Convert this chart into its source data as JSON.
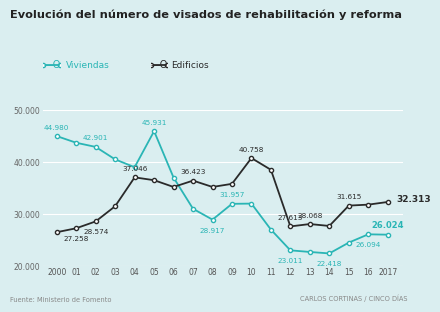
{
  "title": "Evolución del número de visados de rehabilitación y reforma",
  "color_viviendas": "#2ab5b5",
  "color_edificios": "#2a2a2a",
  "bg_color": "#daeef0",
  "ylim": [
    20000,
    50000
  ],
  "yticks": [
    20000,
    30000,
    40000,
    50000
  ],
  "source_text": "Fuente: Ministerio de Fomento",
  "credit_text": "CARLOS CORTINAS / CINCO DÍAS",
  "viv_x": [
    2000,
    2001,
    2002,
    2003,
    2004,
    2005,
    2006,
    2007,
    2008,
    2009,
    2010,
    2011,
    2012,
    2013,
    2014,
    2015,
    2016,
    2017
  ],
  "viv_y": [
    44980,
    43700,
    42901,
    40500,
    39000,
    45931,
    37000,
    31000,
    28917,
    31957,
    32000,
    27000,
    23011,
    22700,
    22418,
    24500,
    26094,
    26024
  ],
  "edi_x": [
    2000,
    2001,
    2002,
    2003,
    2004,
    2005,
    2006,
    2007,
    2008,
    2009,
    2010,
    2011,
    2012,
    2013,
    2014,
    2015,
    2016,
    2017
  ],
  "edi_y": [
    26500,
    27258,
    28574,
    31500,
    37046,
    36500,
    35200,
    36423,
    35200,
    35800,
    40758,
    38500,
    27613,
    28068,
    27700,
    31615,
    31800,
    32313
  ],
  "viv_labels": {
    "2000": [
      44980,
      0,
      5,
      "normal"
    ],
    "2002": [
      42901,
      0,
      5,
      "normal"
    ],
    "2005": [
      45931,
      0,
      5,
      "normal"
    ],
    "2008": [
      28917,
      0,
      -9,
      "normal"
    ],
    "2009": [
      31957,
      0,
      5,
      "normal"
    ],
    "2012": [
      23011,
      0,
      -9,
      "normal"
    ],
    "2014": [
      22418,
      0,
      -9,
      "normal"
    ],
    "2016": [
      26094,
      0,
      -9,
      "normal"
    ],
    "2017": [
      26024,
      0,
      5,
      "bold"
    ]
  },
  "edi_labels": {
    "2001": [
      27258,
      0,
      -9,
      "normal"
    ],
    "2002": [
      28574,
      0,
      -9,
      "normal"
    ],
    "2004": [
      37046,
      0,
      5,
      "normal"
    ],
    "2007": [
      36423,
      0,
      5,
      "normal"
    ],
    "2010": [
      40758,
      0,
      5,
      "normal"
    ],
    "2012": [
      27613,
      0,
      5,
      "normal"
    ],
    "2013": [
      28068,
      0,
      5,
      "normal"
    ],
    "2015": [
      31615,
      0,
      5,
      "normal"
    ],
    "2017": [
      32313,
      6,
      0,
      "bold"
    ]
  },
  "xtick_labels": [
    "2000",
    "01",
    "02",
    "03",
    "04",
    "05",
    "06",
    "07",
    "08",
    "09",
    "10",
    "11",
    "12",
    "13",
    "14",
    "15",
    "16",
    "2017"
  ]
}
